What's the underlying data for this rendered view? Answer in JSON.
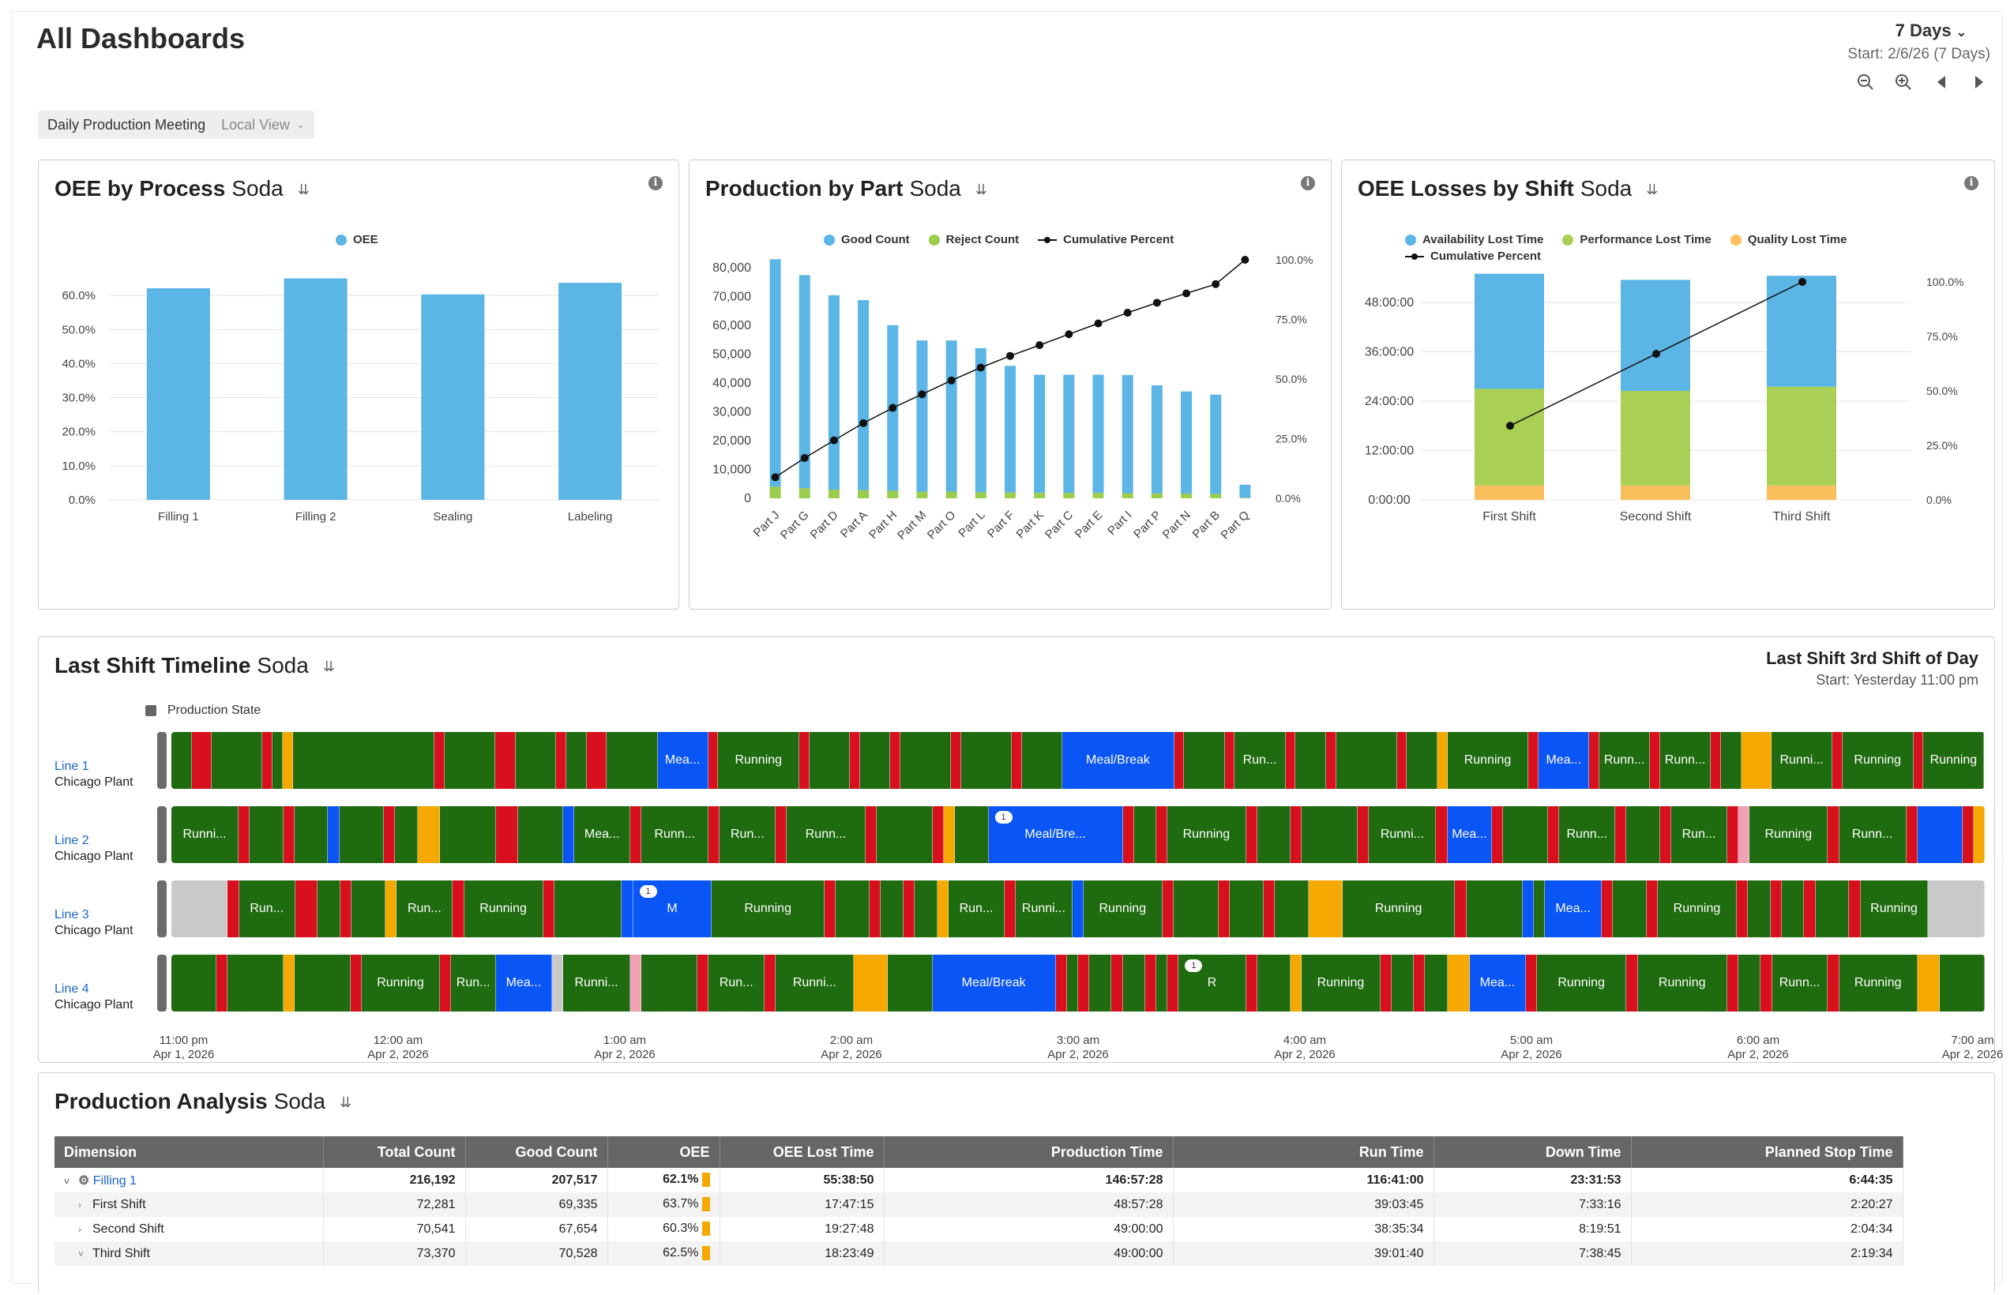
{
  "page": {
    "title": "All Dashboards",
    "range_label": "7 Days",
    "range_start": "Start: 2/6/26 (7 Days)",
    "meeting_name": "Daily Production Meeting",
    "view_name": "Local View",
    "icons": [
      "zoom-out-icon",
      "zoom-in-icon",
      "previous-icon",
      "next-icon"
    ]
  },
  "cards": {
    "oee_process": {
      "title": "OEE by Process",
      "subtitle": "Soda"
    },
    "production_part": {
      "title": "Production by Part",
      "subtitle": "Soda"
    },
    "oee_losses": {
      "title": "OEE Losses by Shift",
      "subtitle": "Soda"
    },
    "timeline": {
      "title": "Last Shift Timeline",
      "subtitle": "Soda",
      "right_title": "Last Shift 3rd Shift of Day",
      "right_sub": "Start: Yesterday 11:00 pm",
      "legend": "Production State",
      "rows": [
        {
          "line": "Line 1",
          "plant": "Chicago Plant"
        },
        {
          "line": "Line 2",
          "plant": "Chicago Plant"
        },
        {
          "line": "Line 3",
          "plant": "Chicago Plant"
        },
        {
          "line": "Line 4",
          "plant": "Chicago Plant"
        }
      ],
      "ticks": [
        {
          "time": "11:00 pm",
          "date": "Apr 1, 2026"
        },
        {
          "time": "12:00 am",
          "date": "Apr 2, 2026"
        },
        {
          "time": "1:00 am",
          "date": "Apr 2, 2026"
        },
        {
          "time": "2:00 am",
          "date": "Apr 2, 2026"
        },
        {
          "time": "3:00 am",
          "date": "Apr 2, 2026"
        },
        {
          "time": "4:00 am",
          "date": "Apr 2, 2026"
        },
        {
          "time": "5:00 am",
          "date": "Apr 2, 2026"
        },
        {
          "time": "6:00 am",
          "date": "Apr 2, 2026"
        },
        {
          "time": "7:00 am",
          "date": "Apr 2, 2026"
        }
      ]
    },
    "analysis": {
      "title": "Production Analysis",
      "subtitle": "Soda"
    }
  },
  "state_colors": {
    "g": "#1f6b0f",
    "r": "#d8101e",
    "y": "#f5a800",
    "b": "#0a55f5",
    "gr": "#c9c9c9",
    "pk": "#f1a1b5"
  },
  "chart_data": [
    {
      "type": "bar",
      "legend": [
        "OEE"
      ],
      "color": "#5bb5e5",
      "categories": [
        "Filling 1",
        "Filling 2",
        "Sealing",
        "Labeling"
      ],
      "values": [
        62.1,
        65.0,
        60.3,
        63.7
      ],
      "y_ticks": [
        "0.0%",
        "10.0%",
        "20.0%",
        "30.0%",
        "40.0%",
        "50.0%",
        "60.0%"
      ],
      "ylim": [
        0,
        70
      ]
    },
    {
      "type": "bar",
      "legend": [
        "Good Count",
        "Reject Count",
        "Cumulative Percent"
      ],
      "colors": {
        "good": "#5bb5e5",
        "reject": "#9acd4b",
        "line": "#111111"
      },
      "categories": [
        "Part J",
        "Part G",
        "Part D",
        "Part A",
        "Part H",
        "Part M",
        "Part O",
        "Part L",
        "Part F",
        "Part K",
        "Part C",
        "Part E",
        "Part I",
        "Part P",
        "Part N",
        "Part B",
        "Part Q"
      ],
      "good": [
        79000,
        74000,
        67500,
        66000,
        57500,
        52500,
        52500,
        50000,
        44000,
        41000,
        41000,
        41000,
        41000,
        37500,
        35500,
        34500,
        4500
      ],
      "reject": [
        4000,
        3500,
        3000,
        2800,
        2600,
        2300,
        2300,
        2100,
        2000,
        1900,
        1900,
        1900,
        1800,
        1700,
        1600,
        1500,
        200
      ],
      "cumulative": [
        8.8,
        16.9,
        24.3,
        31.5,
        37.9,
        43.6,
        49.4,
        54.8,
        59.7,
        64.2,
        68.8,
        73.3,
        77.8,
        82.0,
        85.9,
        89.8,
        100.0
      ],
      "y_ticks": [
        "0",
        "10,000",
        "20,000",
        "30,000",
        "40,000",
        "50,000",
        "60,000",
        "70,000",
        "80,000"
      ],
      "y2_ticks": [
        "0.0%",
        "25.0%",
        "50.0%",
        "75.0%",
        "100.0%"
      ],
      "ylim": [
        0,
        85000
      ]
    },
    {
      "type": "bar",
      "stacked": true,
      "legend": [
        "Availability Lost Time",
        "Performance Lost Time",
        "Quality Lost Time",
        "Cumulative Percent"
      ],
      "colors": {
        "availability": "#5bb5e5",
        "performance": "#a9cf55",
        "quality": "#f9bf5b",
        "line": "#111111"
      },
      "categories": [
        "First Shift",
        "Second Shift",
        "Third Shift"
      ],
      "quality_hours": [
        3.5,
        3.5,
        3.5
      ],
      "performance_hours": [
        23.5,
        23.0,
        24.0
      ],
      "availability_hours": [
        28.0,
        27.0,
        27.0
      ],
      "cumulative": [
        34,
        67,
        100
      ],
      "y_ticks": [
        "0:00:00",
        "12:00:00",
        "24:00:00",
        "36:00:00",
        "48:00:00"
      ],
      "y2_ticks": [
        "0.0%",
        "25.0%",
        "50.0%",
        "75.0%",
        "100.0%"
      ],
      "ylim": [
        0,
        58
      ]
    }
  ],
  "timeline_segments": [
    [
      "g:2",
      "r:2",
      "g:5",
      "r:1",
      "g:1",
      "y:1",
      "g:14",
      "r:1",
      "g:5",
      "r:2",
      "g:4",
      "r:1",
      "g:2",
      "r:2",
      "g:5",
      "b:5:Mea...",
      "r:1",
      "g:8:Running",
      "r:1",
      "g:4",
      "r:1",
      "g:3",
      "r:1",
      "g:5",
      "r:1",
      "g:5",
      "r:1",
      "g:4",
      "b:11:Meal/Break",
      "r:1",
      "g:4",
      "r:1",
      "g:5:Run...",
      "r:1",
      "g:3",
      "r:1",
      "g:6",
      "r:1",
      "g:3",
      "y:1",
      "g:8:Running",
      "r:1",
      "b:5:Mea...",
      "r:1",
      "g:5:Runn...",
      "r:1",
      "g:5:Runn...",
      "r:1",
      "g:2",
      "y:3",
      "g:6:Runni...",
      "r:1",
      "g:7:Running",
      "r:1",
      "g:6:Running"
    ],
    [
      "g:6:Runni...",
      "r:1",
      "g:3",
      "r:1",
      "g:3",
      "b:1",
      "g:4",
      "r:1",
      "g:2",
      "y:2",
      "g:5",
      "r:2",
      "g:4",
      "b:1",
      "g:5:Mea...",
      "r:1",
      "g:6:Runn...",
      "r:1",
      "g:5:Run...",
      "r:1",
      "g:7:Runn...",
      "r:1",
      "g:5",
      "r:1",
      "y:1",
      "g:3",
      "b:12:Meal/Bre...:1",
      "r:1",
      "g:2",
      "r:1",
      "g:7:Running",
      "r:1",
      "g:3",
      "r:1",
      "g:5",
      "r:1",
      "g:6:Runni...",
      "r:1",
      "b:4:Mea...",
      "r:1",
      "g:4",
      "r:1",
      "g:5:Runn...",
      "r:1",
      "g:3",
      "r:1",
      "g:5:Run...",
      "r:1",
      "pk:1",
      "g:7:Running",
      "r:1",
      "g:6:Runn...",
      "r:1",
      "b:4",
      "r:1",
      "y:1"
    ],
    [
      "gr:5",
      "r:1",
      "g:5:Run...",
      "r:2",
      "g:2",
      "r:1",
      "g:3",
      "y:1",
      "g:5:Run...",
      "r:1",
      "g:7:Running",
      "r:1",
      "g:6",
      "b:1",
      "b:7:M:1",
      "g:10:Running",
      "r:1",
      "g:3",
      "r:1",
      "g:2",
      "r:1",
      "g:2",
      "y:1",
      "g:5:Run...",
      "r:1",
      "g:5:Runni...",
      "b:1",
      "g:7:Running",
      "r:1",
      "g:4",
      "r:1",
      "g:3",
      "r:1",
      "g:3",
      "y:3",
      "g:10:Running",
      "r:1",
      "g:5",
      "b:1",
      "g:1",
      "b:5:Mea...",
      "r:1",
      "g:3",
      "r:1",
      "g:7:Running",
      "r:1",
      "g:2",
      "r:1",
      "g:2",
      "r:1",
      "g:3",
      "r:1",
      "g:6:Running",
      "gr:5"
    ],
    [
      "g:4",
      "r:1",
      "g:5",
      "y:1",
      "g:5",
      "r:1",
      "g:7:Running",
      "r:1",
      "g:4:Run...",
      "b:5:Mea...",
      "gr:1",
      "g:6:Runni...",
      "pk:1",
      "g:5",
      "r:1",
      "g:5:Run...",
      "r:1",
      "g:7:Runni...",
      "y:3",
      "g:4",
      "b:11:Meal/Break",
      "r:1",
      "g:1",
      "r:1",
      "g:2",
      "r:1",
      "g:2",
      "r:1",
      "g:1",
      "r:1",
      "g:6:R:1",
      "r:1",
      "g:3",
      "y:1",
      "g:7:Running",
      "r:1",
      "g:2",
      "r:1",
      "g:2",
      "y:2",
      "b:5:Mea...",
      "r:1",
      "g:8:Running",
      "r:1",
      "g:8:Running",
      "r:1",
      "g:2",
      "r:1",
      "g:5:Runn...",
      "r:1",
      "g:7:Running",
      "y:2",
      "g:4"
    ]
  ],
  "table": {
    "headers": [
      "Dimension",
      "Total Count",
      "Good Count",
      "OEE",
      "OEE Lost Time",
      "Production Time",
      "Run Time",
      "Down Time",
      "Planned Stop Time"
    ],
    "rows": [
      {
        "dimension": "Filling 1",
        "total": "216,192",
        "good": "207,517",
        "oee": "62.1%",
        "oee_lost": "55:38:50",
        "prod": "146:57:28",
        "run": "116:41:00",
        "down": "23:31:53",
        "planned": "6:44:35",
        "level": 0
      },
      {
        "dimension": "First Shift",
        "total": "72,281",
        "good": "69,335",
        "oee": "63.7%",
        "oee_lost": "17:47:15",
        "prod": "48:57:28",
        "run": "39:03:45",
        "down": "7:33:16",
        "planned": "2:20:27",
        "level": 1
      },
      {
        "dimension": "Second Shift",
        "total": "70,541",
        "good": "67,654",
        "oee": "60.3%",
        "oee_lost": "19:27:48",
        "prod": "49:00:00",
        "run": "38:35:34",
        "down": "8:19:51",
        "planned": "2:04:34",
        "level": 1
      },
      {
        "dimension": "Third Shift",
        "total": "73,370",
        "good": "70,528",
        "oee": "62.5%",
        "oee_lost": "18:23:49",
        "prod": "49:00:00",
        "run": "39:01:40",
        "down": "7:38:45",
        "planned": "2:19:34",
        "level": 1
      }
    ]
  }
}
